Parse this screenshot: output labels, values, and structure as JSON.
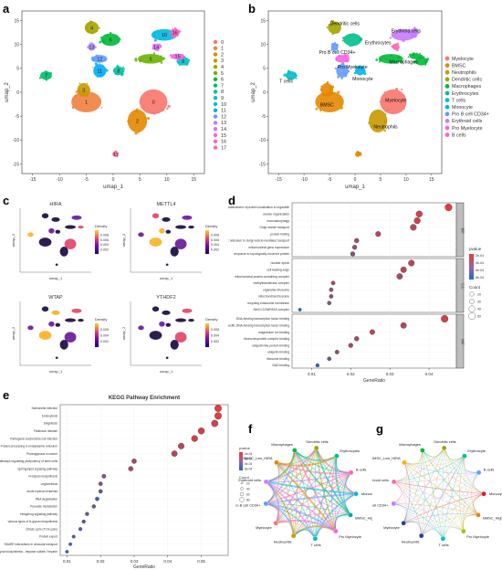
{
  "figure": {
    "panel_letters": [
      "a",
      "b",
      "c",
      "d",
      "e",
      "f",
      "g"
    ]
  },
  "panel_a": {
    "xlabel": "umap_1",
    "ylabel": "umap_2",
    "xticks": [
      "-15",
      "-10",
      "-5",
      "0",
      "5",
      "10",
      "15"
    ],
    "yticks": [
      "-15",
      "-10",
      "-5",
      "0",
      "5",
      "10",
      "15"
    ],
    "clusters": [
      {
        "id": "0",
        "color": "#f8766d",
        "x": 7.5,
        "y": -2,
        "rx": 2.6,
        "ry": 2.6
      },
      {
        "id": "1",
        "color": "#f07f3f",
        "x": -5,
        "y": -2,
        "rx": 2.8,
        "ry": 2.2
      },
      {
        "id": "2",
        "color": "#e58700",
        "x": 4.5,
        "y": -6,
        "rx": 1.8,
        "ry": 2.4
      },
      {
        "id": "3",
        "color": "#c99800",
        "x": -5.5,
        "y": 0.5,
        "rx": 1.2,
        "ry": 1.4
      },
      {
        "id": "4",
        "color": "#a3a500",
        "x": -4,
        "y": 13.5,
        "rx": 1.3,
        "ry": 1.3
      },
      {
        "id": "5",
        "color": "#6bb100",
        "x": 7,
        "y": 7,
        "rx": 2.4,
        "ry": 1.0
      },
      {
        "id": "6",
        "color": "#00ba38",
        "x": -0.5,
        "y": 11,
        "rx": 1.8,
        "ry": 1.3
      },
      {
        "id": "7",
        "color": "#00be67",
        "x": -12.5,
        "y": 3.5,
        "rx": 1.1,
        "ry": 0.9
      },
      {
        "id": "8",
        "color": "#00c19a",
        "x": 1,
        "y": 4.5,
        "rx": 1.0,
        "ry": 0.9
      },
      {
        "id": "9",
        "color": "#00bfc4",
        "x": 13,
        "y": 6.5,
        "rx": 1.2,
        "ry": 0.9
      },
      {
        "id": "10",
        "color": "#00b9e3",
        "x": 9.5,
        "y": 12,
        "rx": 2.4,
        "ry": 1.2
      },
      {
        "id": "11",
        "color": "#00adfa",
        "x": -2.5,
        "y": 4.5,
        "rx": 1.2,
        "ry": 1.4
      },
      {
        "id": "12",
        "color": "#619cff",
        "x": -2.5,
        "y": 7,
        "rx": 1.4,
        "ry": 0.8
      },
      {
        "id": "13",
        "color": "#ae87ff",
        "x": -4,
        "y": 9.5,
        "rx": 0.7,
        "ry": 0.8
      },
      {
        "id": "14",
        "color": "#db72fb",
        "x": 8,
        "y": 9.5,
        "rx": 0.7,
        "ry": 0.7
      },
      {
        "id": "15",
        "color": "#f564e3",
        "x": 12,
        "y": 7.5,
        "rx": 1.3,
        "ry": 0.6
      },
      {
        "id": "16",
        "color": "#ff61c3",
        "x": 11.5,
        "y": 12.5,
        "rx": 0.9,
        "ry": 0.8
      },
      {
        "id": "17",
        "color": "#ff6c91",
        "x": 0.5,
        "y": -13,
        "rx": 0.5,
        "ry": 0.5
      }
    ]
  },
  "panel_b": {
    "xlabel": "umap_1",
    "ylabel": "umap_2",
    "xticks": [
      "-15",
      "-10",
      "-5",
      "0",
      "5",
      "10",
      "15"
    ],
    "yticks": [
      "-15",
      "-10",
      "-5",
      "0",
      "5",
      "10",
      "15"
    ],
    "legend": [
      {
        "label": "Myelocyte",
        "color": "#f8766d"
      },
      {
        "label": "BMSC",
        "color": "#e58700"
      },
      {
        "label": "Neutrophils",
        "color": "#c99800"
      },
      {
        "label": "Dendritic cells",
        "color": "#a3a500"
      },
      {
        "label": "Macrophages",
        "color": "#00ba38"
      },
      {
        "label": "Erythrocytes",
        "color": "#00c08b"
      },
      {
        "label": "T cells",
        "color": "#00bfc4"
      },
      {
        "label": "Monocyte",
        "color": "#00b4f0"
      },
      {
        "label": "Pro B cell CD34+",
        "color": "#619cff"
      },
      {
        "label": "Erythroid cells",
        "color": "#c77cff"
      },
      {
        "label": "Pro Myelocyte",
        "color": "#f564e3"
      },
      {
        "label": "B cells",
        "color": "#ff64b0"
      }
    ],
    "annotations": [
      {
        "text": "Dendritic cells",
        "x": -2,
        "y": 14
      },
      {
        "text": "Erythroid cells",
        "x": 10,
        "y": 12.5
      },
      {
        "text": "Erythrocytes",
        "x": 4.5,
        "y": 10
      },
      {
        "text": "Pro B cell CD34+",
        "x": -3.5,
        "y": 8
      },
      {
        "text": "Pro Myelocyte",
        "x": -0.5,
        "y": 5
      },
      {
        "text": "Macrophages",
        "x": 9.5,
        "y": 6
      },
      {
        "text": "Monocyte",
        "x": 1.5,
        "y": 2.5
      },
      {
        "text": "T cells",
        "x": -13.5,
        "y": 2
      },
      {
        "text": "BMSC",
        "x": -5.5,
        "y": -3
      },
      {
        "text": "Myelocyte",
        "x": 8,
        "y": -2
      },
      {
        "text": "Neutrophils",
        "x": 6,
        "y": -7.5
      }
    ]
  },
  "panel_c": {
    "xlabel": "umap_1",
    "ylabel": "umap_2",
    "legend_title": "Density",
    "plots": [
      {
        "title": "HIRA",
        "scale": [
          "0.002",
          "0.004",
          "0.006",
          "0.008"
        ]
      },
      {
        "title": "METTL4",
        "scale": [
          "0.002",
          "0.004",
          "0.006",
          "0.008"
        ]
      },
      {
        "title": "WTAP",
        "scale": [
          "0.002",
          "0.004",
          "0.006"
        ]
      },
      {
        "title": "YTHDF2",
        "scale": [
          "0.002",
          "0.004",
          "0.006"
        ]
      }
    ]
  },
  "panel_d": {
    "xlabel": "GeneRatio",
    "xticks": [
      "0.01",
      "0.02",
      "0.03",
      "0.04"
    ],
    "xlim": [
      0.005,
      0.047
    ],
    "legend_title_color": "pvalue",
    "legend_color_ticks": [
      "2e-04",
      "4e-04",
      "6e-04",
      "8e-04"
    ],
    "legend_title_size": "Count",
    "legend_size_ticks": [
      "20",
      "30",
      "40",
      "50"
    ],
    "groups": [
      {
        "name": "BP",
        "terms": [
          {
            "term": "establishment of protein localization to organelle",
            "ratio": 0.045,
            "count": 52,
            "p": 0.0001
          },
          {
            "term": "vesicle organization",
            "ratio": 0.0375,
            "count": 44,
            "p": 0.0002
          },
          {
            "term": "macroautophagy",
            "ratio": 0.037,
            "count": 43,
            "p": 0.0002
          },
          {
            "term": "Golgi vesicle transport",
            "ratio": 0.036,
            "count": 42,
            "p": 0.0003
          },
          {
            "term": "protein folding",
            "ratio": 0.027,
            "count": 32,
            "p": 0.0003
          },
          {
            "term": "endoplasmic reticulum to Golgi vesicle-mediated transport",
            "ratio": 0.0215,
            "count": 25,
            "p": 0.0004
          },
          {
            "term": "mitochondrial gene expression",
            "ratio": 0.021,
            "count": 24,
            "p": 0.0004
          },
          {
            "term": "response to topologically incorrect protein",
            "ratio": 0.0205,
            "count": 24,
            "p": 0.0005
          }
        ]
      },
      {
        "name": "CC",
        "terms": [
          {
            "term": "nuclear speck",
            "ratio": 0.0355,
            "count": 41,
            "p": 0.0003
          },
          {
            "term": "cell leading edge",
            "ratio": 0.0335,
            "count": 39,
            "p": 0.0003
          },
          {
            "term": "mitochondrial protein-containing complex",
            "ratio": 0.0325,
            "count": 38,
            "p": 0.0004
          },
          {
            "term": "methyltransferase complex",
            "ratio": 0.0155,
            "count": 18,
            "p": 0.0004
          },
          {
            "term": "organellar ribosome",
            "ratio": 0.015,
            "count": 18,
            "p": 0.0004
          },
          {
            "term": "mitochondrial ribosome",
            "ratio": 0.015,
            "count": 18,
            "p": 0.0004
          },
          {
            "term": "recycling endosome membrane",
            "ratio": 0.0145,
            "count": 17,
            "p": 0.0005
          },
          {
            "term": "Set1C/COMPASS complex",
            "ratio": 0.007,
            "count": 8,
            "p": 0.0009
          }
        ]
      },
      {
        "name": "MF",
        "terms": [
          {
            "term": "DNA-binding transcription factor binding",
            "ratio": 0.044,
            "count": 51,
            "p": 0.0002
          },
          {
            "term": "RNA polymerase II-specific DNA-binding transcription factor binding",
            "ratio": 0.0335,
            "count": 39,
            "p": 0.0003
          },
          {
            "term": "magnesium ion binding",
            "ratio": 0.0255,
            "count": 30,
            "p": 0.0003
          },
          {
            "term": "ribonucleoprotein complex binding",
            "ratio": 0.0215,
            "count": 25,
            "p": 0.0004
          },
          {
            "term": "ubiquitin-like protein binding",
            "ratio": 0.02,
            "count": 23,
            "p": 0.0004
          },
          {
            "term": "ubiquitin binding",
            "ratio": 0.0165,
            "count": 19,
            "p": 0.0005
          },
          {
            "term": "ribosome binding",
            "ratio": 0.0145,
            "count": 17,
            "p": 0.0006
          },
          {
            "term": "NAD binding",
            "ratio": 0.0115,
            "count": 13,
            "p": 0.0008
          }
        ]
      }
    ]
  },
  "panel_e": {
    "title": "KEGG Pathway Enrichment",
    "xlabel": "GeneRatio",
    "xticks": [
      "0.01",
      "0.02",
      "0.03",
      "0.04",
      "0.05"
    ],
    "xlim": [
      0.008,
      0.058
    ],
    "legend_title_color": "pvalue",
    "legend_color_ticks": [
      "2e-04",
      "4e-04",
      "6e-04",
      "8e-04"
    ],
    "legend_title_size": "Count",
    "legend_size_ticks": [
      "20",
      "30",
      "40",
      "50"
    ],
    "terms": [
      {
        "term": "Salmonella infection",
        "ratio": 0.055,
        "count": 50,
        "p": 0.0001
      },
      {
        "term": "Endocytosis",
        "ratio": 0.055,
        "count": 50,
        "p": 0.0001
      },
      {
        "term": "Shigellosis",
        "ratio": 0.054,
        "count": 48,
        "p": 0.0002
      },
      {
        "term": "Parkinson disease",
        "ratio": 0.05,
        "count": 45,
        "p": 0.0002
      },
      {
        "term": "Pathogenic Escherichia coli infection",
        "ratio": 0.048,
        "count": 43,
        "p": 0.0002
      },
      {
        "term": "Protein processing in endoplasmic reticulum",
        "ratio": 0.044,
        "count": 40,
        "p": 0.0003
      },
      {
        "term": "Proteoglycans in cancer",
        "ratio": 0.042,
        "count": 38,
        "p": 0.0003
      },
      {
        "term": "Signaling pathways regulating pluripotency of stem cells",
        "ratio": 0.03,
        "count": 27,
        "p": 0.0004
      },
      {
        "term": "Sphingolipid signaling pathway",
        "ratio": 0.029,
        "count": 26,
        "p": 0.0004
      },
      {
        "term": "N-Glycan biosynthesis",
        "ratio": 0.021,
        "count": 19,
        "p": 0.0005
      },
      {
        "term": "Legionellosis",
        "ratio": 0.02,
        "count": 18,
        "p": 0.0005
      },
      {
        "term": "Acute myeloid leukemia",
        "ratio": 0.02,
        "count": 18,
        "p": 0.0006
      },
      {
        "term": "RNA degradation",
        "ratio": 0.019,
        "count": 17,
        "p": 0.0008
      },
      {
        "term": "Pyruvate metabolism",
        "ratio": 0.018,
        "count": 16,
        "p": 0.0006
      },
      {
        "term": "Hedgehog signaling pathway",
        "ratio": 0.016,
        "count": 14,
        "p": 0.0006
      },
      {
        "term": "Various types of N-glycan biosynthesis",
        "ratio": 0.015,
        "count": 13,
        "p": 0.0007
      },
      {
        "term": "Citrate cycle (TCA cycle)",
        "ratio": 0.014,
        "count": 12,
        "p": 0.0007
      },
      {
        "term": "Protein export",
        "ratio": 0.012,
        "count": 10,
        "p": 0.0007
      },
      {
        "term": "SNARE interactions in vesicular transport",
        "ratio": 0.011,
        "count": 9,
        "p": 0.0008
      },
      {
        "term": "Glycosaminoglycan biosynthesis - heparan sulfate / heparin",
        "ratio": 0.01,
        "count": 8,
        "p": 0.0008
      }
    ]
  },
  "panel_f": {
    "legend_title_color": "pvalue",
    "legend_color_ticks": [
      "2e-04",
      "4e-04",
      "6e-04",
      "8e-04"
    ],
    "legend_title_size": "Count",
    "legend_size_ticks": [
      "20",
      "40",
      "60",
      "80"
    ],
    "nodes": [
      {
        "label": "Macrophages",
        "color": "#00ba38"
      },
      {
        "label": "Dendritic cells",
        "color": "#a3a500"
      },
      {
        "label": "Erythrocytes",
        "color": "#00c08b"
      },
      {
        "label": "B cells",
        "color": "#ff64b0"
      },
      {
        "label": "Monocyte",
        "color": "#00b4f0"
      },
      {
        "label": "BMSC_High_HIRA",
        "color": "#00a9a5"
      },
      {
        "label": "Pro Myelocyte",
        "color": "#f564e3"
      },
      {
        "label": "T cells",
        "color": "#00bfc4"
      },
      {
        "label": "Neutrophils",
        "color": "#c99800"
      },
      {
        "label": "Myelocyte",
        "color": "#f8766d"
      },
      {
        "label": "Pro B cell CD34+",
        "color": "#619cff"
      },
      {
        "label": "Erythroid cells",
        "color": "#c77cff"
      },
      {
        "label": "BMSC_Low_HIRA",
        "color": "#e58700"
      }
    ]
  },
  "panel_g": {
    "nodes": [
      {
        "label": "Macrophages",
        "color": "#00ba38"
      },
      {
        "label": "Dendritic cells",
        "color": "#a3a500"
      },
      {
        "label": "Erythrocyte",
        "color": "#00c08b"
      },
      {
        "label": "B cells",
        "color": "#619cff"
      },
      {
        "label": "Monocyte",
        "color": "#e41a1c"
      },
      {
        "label": "BMSC_High_HIRA",
        "color": "#e58700"
      },
      {
        "label": "Pro Myelocyte",
        "color": "#a3c400"
      },
      {
        "label": "T cells",
        "color": "#00bfc4"
      },
      {
        "label": "Neutrophils",
        "color": "#2c3e8f"
      },
      {
        "label": "Myelocyte",
        "color": "#2c3e8f"
      },
      {
        "label": "Pro B cell CD34+",
        "color": "#c77cff"
      },
      {
        "label": "Erythroid cells",
        "color": "#ff64b0"
      },
      {
        "label": "BMSC_Low_HIRA",
        "color": "#ffb000"
      }
    ]
  }
}
